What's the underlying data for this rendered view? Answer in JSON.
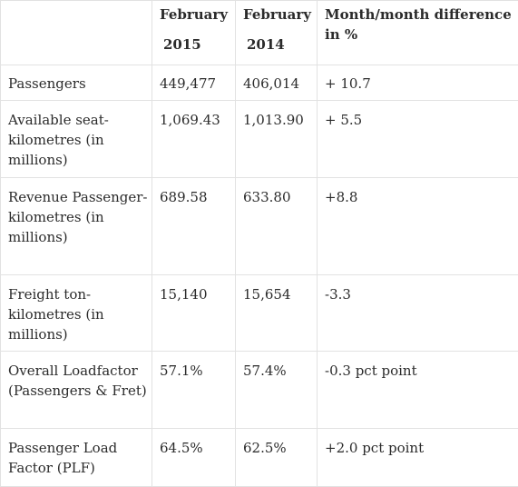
{
  "table": {
    "headers": [
      {
        "line1": "",
        "line2": ""
      },
      {
        "line1": "February",
        "line2": "2015"
      },
      {
        "line1": "February",
        "line2": "2014"
      },
      {
        "line1": "Month/month difference",
        "line2": "in %"
      }
    ],
    "rows": [
      {
        "label": "Passengers",
        "v2015": "449,477",
        "v2014": "406,014",
        "diff": "+ 10.7"
      },
      {
        "label": "Available seat-kilometres (in millions)",
        "v2015": "1,069.43",
        "v2014": "1,013.90",
        "diff": "+ 5.5"
      },
      {
        "label": "Revenue Passenger-kilometres (in millions)",
        "v2015": "689.58",
        "v2014": "633.80",
        "diff": "+8.8"
      },
      {
        "label": "Freight ton-kilometres (in millions)",
        "v2015": "15,140",
        "v2014": "15,654",
        "diff": "-3.3"
      },
      {
        "label": "Overall Loadfactor (Passengers & Fret)",
        "v2015": "57.1%",
        "v2014": "57.4%",
        "diff": "-0.3 pct point"
      },
      {
        "label": "Passenger Load Factor (PLF)",
        "v2015": "64.5%",
        "v2014": "62.5%",
        "diff": "+2.0 pct point"
      }
    ]
  }
}
